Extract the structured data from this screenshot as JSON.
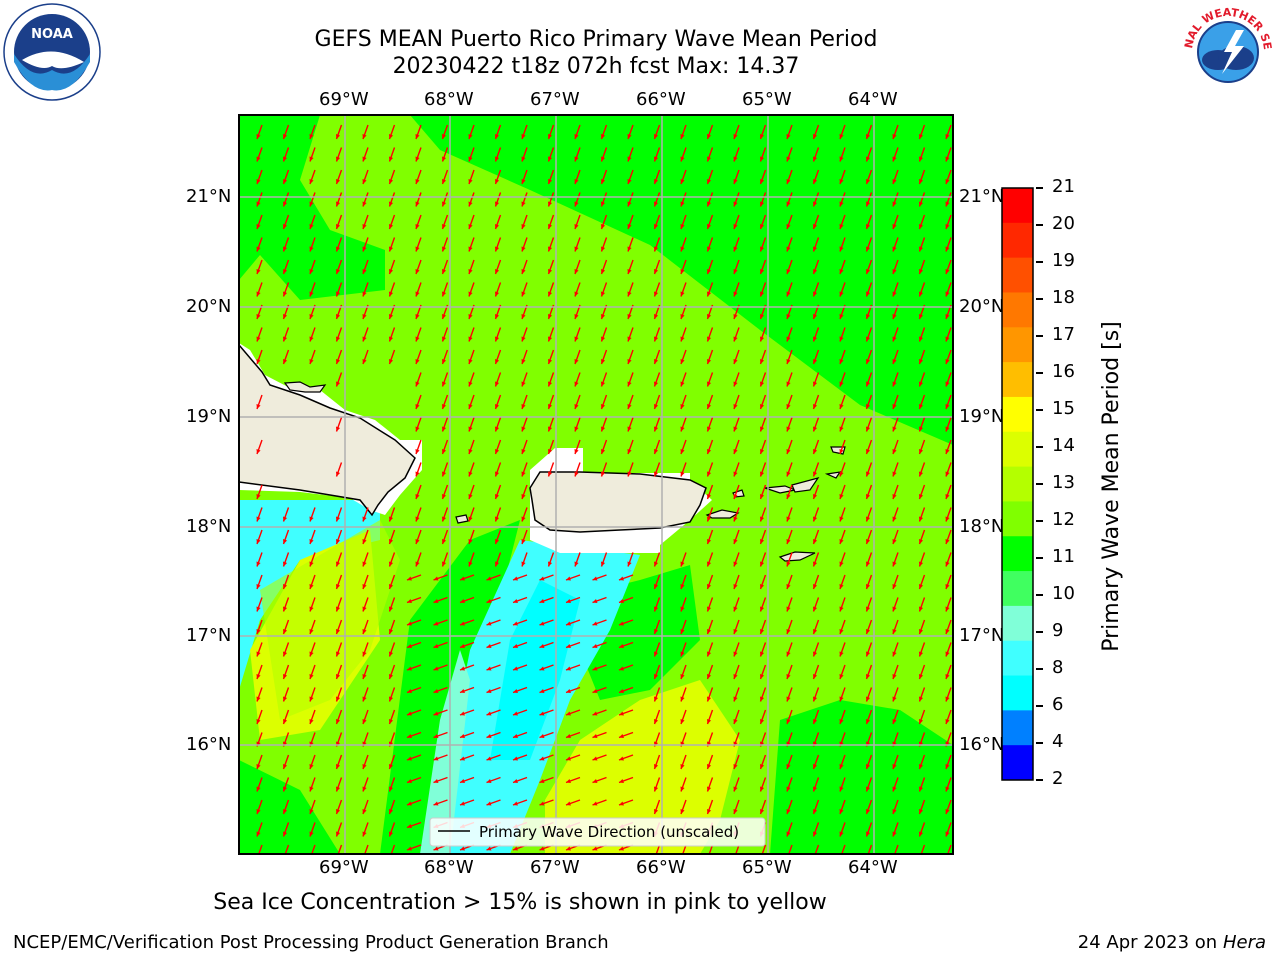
{
  "title": {
    "line1": "GEFS MEAN Puerto Rico Primary Wave Mean Period",
    "line2": "20230422 t18z 072h fcst   Max: 14.37"
  },
  "logos": {
    "left": "NOAA",
    "right": "NATIONAL WEATHER SERVICE"
  },
  "map": {
    "lon_labels": [
      "69°W",
      "68°W",
      "67°W",
      "66°W",
      "65°W",
      "64°W"
    ],
    "lat_labels": [
      "21°N",
      "20°N",
      "19°N",
      "18°N",
      "17°N",
      "16°N"
    ],
    "legend": "Primary Wave Direction (unscaled)",
    "arrow_color": "#ff0000",
    "land_color": "#efecdc"
  },
  "colorbar": {
    "title": "Primary Wave Mean Period [s]",
    "ticks": [
      "21",
      "20",
      "19",
      "18",
      "17",
      "16",
      "15",
      "14",
      "13",
      "12",
      "11",
      "10",
      "9",
      "8",
      "6",
      "4",
      "2"
    ],
    "colors": [
      "#ff0000",
      "#ff2800",
      "#ff5000",
      "#ff7800",
      "#ff9600",
      "#ffbe00",
      "#ffff00",
      "#dcff00",
      "#b4ff00",
      "#80ff00",
      "#00ff00",
      "#40ff60",
      "#80ffd8",
      "#40ffff",
      "#00ffff",
      "#0080ff",
      "#0000ff"
    ]
  },
  "note": "Sea Ice Concentration > 15% is shown in pink to yellow",
  "footer": {
    "left": "NCEP/EMC/Verification Post Processing Product Generation Branch",
    "right_date": "24 Apr 2023 on ",
    "right_machine": "Hera"
  }
}
